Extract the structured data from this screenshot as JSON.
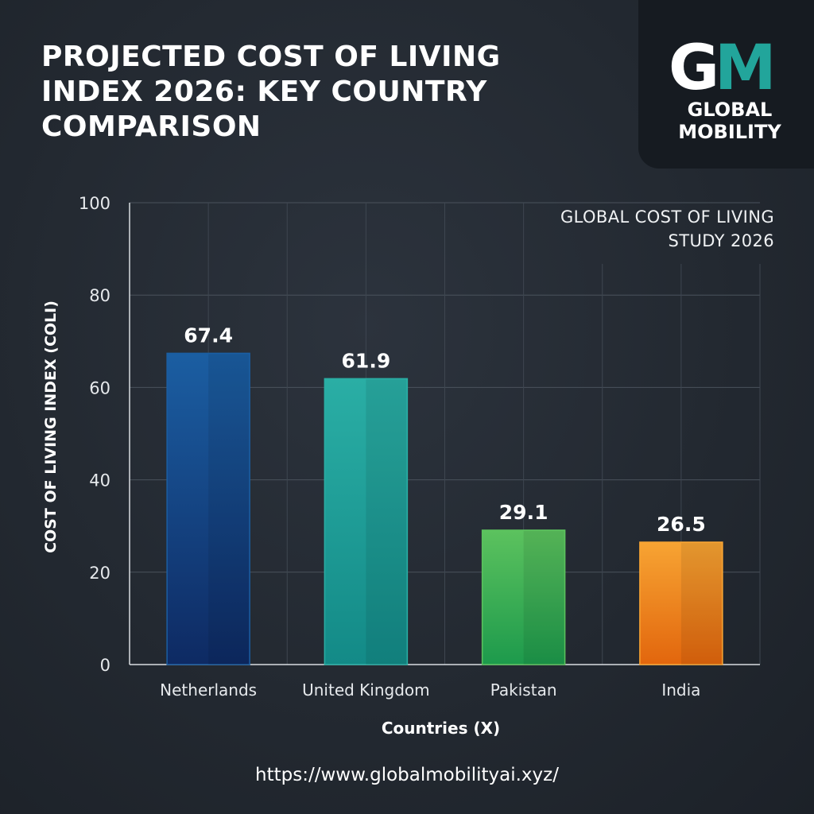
{
  "header": {
    "title": "PROJECTED COST OF LIVING INDEX 2026: KEY COUNTRY COMPARISON"
  },
  "logo": {
    "mark_g": "G",
    "mark_m": "M",
    "line1": "GLOBAL",
    "line2": "MOBILITY",
    "colors": {
      "g": "#ffffff",
      "m": "#22a59b"
    }
  },
  "footer": {
    "url": "https://www.globalmobilityai.xyz/"
  },
  "chart_data": {
    "type": "bar",
    "title": "PROJECTED COST OF LIVING INDEX 2026: KEY COUNTRY COMPARISON",
    "subtitle": "GLOBAL COST OF LIVING STUDY 2026",
    "xlabel": "Countries (X)",
    "ylabel": "COST OF LIVING INDEX (COLI)",
    "ylim": [
      0,
      100
    ],
    "yticks": [
      0,
      20,
      40,
      60,
      80,
      100
    ],
    "grid": true,
    "categories": [
      "Netherlands",
      "United Kingdom",
      "Pakistan",
      "India"
    ],
    "values": [
      67.4,
      61.9,
      29.1,
      26.5
    ],
    "value_labels": [
      "67.4",
      "61.9",
      "29.1",
      "26.5"
    ],
    "bar_colors": [
      {
        "top": "#1b5ea2",
        "bottom": "#0e2a63"
      },
      {
        "top": "#2aaea5",
        "bottom": "#138a87"
      },
      {
        "top": "#5cc25e",
        "bottom": "#1d9a4c"
      },
      {
        "top": "#f7a433",
        "bottom": "#e2660d"
      }
    ]
  }
}
